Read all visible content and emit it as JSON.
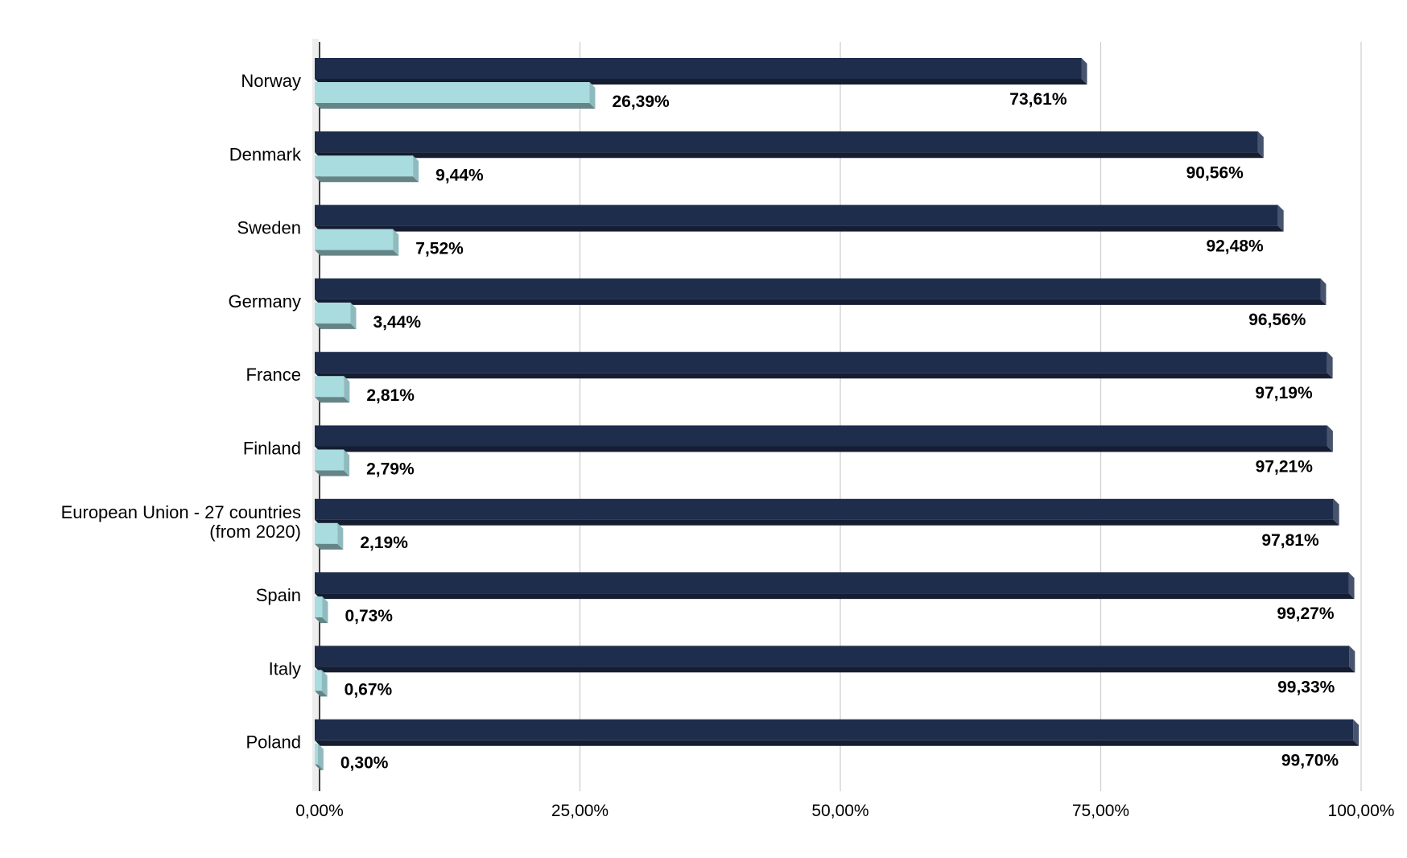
{
  "chart_data": {
    "type": "bar",
    "orientation": "horizontal",
    "categories": [
      "Norway",
      "Denmark",
      "Sweden",
      "Germany",
      "France",
      "Finland",
      "European Union - 27 countries (from 2020)",
      "Spain",
      "Italy",
      "Poland"
    ],
    "series": [
      {
        "color": "#1e2d4c",
        "values": [
          73.61,
          90.56,
          92.48,
          96.56,
          97.19,
          97.21,
          97.81,
          99.27,
          99.33,
          99.7
        ],
        "labels": [
          "73,61%",
          "90,56%",
          "92,48%",
          "96,56%",
          "97,19%",
          "97,21%",
          "97,81%",
          "99,27%",
          "99,33%",
          "99,70%"
        ]
      },
      {
        "color": "#a8dcdf",
        "values": [
          26.39,
          9.44,
          7.52,
          3.44,
          2.81,
          2.79,
          2.19,
          0.73,
          0.67,
          0.3
        ],
        "labels": [
          "26,39%",
          "9,44%",
          "7,52%",
          "3,44%",
          "2,81%",
          "2,79%",
          "2,19%",
          "0,73%",
          "0,67%",
          "0,30%"
        ]
      }
    ],
    "xlim": [
      0,
      100
    ],
    "xticks": [
      0,
      25,
      50,
      75,
      100
    ],
    "xtick_labels": [
      "0,00%",
      "25,00%",
      "50,00%",
      "75,00%",
      "100,00%"
    ],
    "title": "",
    "xlabel": "",
    "ylabel": "",
    "grid": "vertical",
    "legend": "none"
  }
}
